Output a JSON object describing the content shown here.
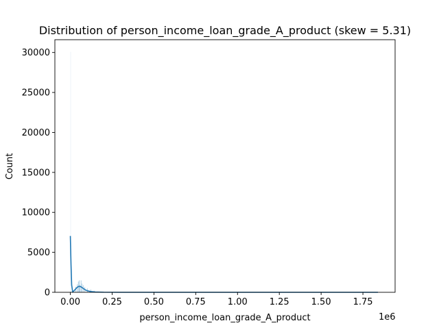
{
  "chart_data": {
    "type": "histogram",
    "title": "Distribution of person_income_loan_grade_A_product (skew = 5.31)",
    "xlabel": "person_income_loan_grade_A_product",
    "ylabel": "Count",
    "x_offset_label": "1e6",
    "xlim": [
      -0.0925,
      1.9425
    ],
    "ylim": [
      0,
      31600
    ],
    "x_ticks": [
      0.0,
      0.25,
      0.5,
      0.75,
      1.0,
      1.25,
      1.5,
      1.75
    ],
    "x_tick_labels": [
      "0.00",
      "0.25",
      "0.50",
      "0.75",
      "1.00",
      "1.25",
      "1.50",
      "1.75"
    ],
    "y_ticks": [
      0,
      5000,
      10000,
      15000,
      20000,
      25000,
      30000
    ],
    "y_tick_labels": [
      "0",
      "5000",
      "10000",
      "15000",
      "20000",
      "25000",
      "30000"
    ],
    "grid": false,
    "legend": "none",
    "colors": {
      "bars": "#1f77b4",
      "kde": "#1f77b4",
      "bar_edge": "#ffffff"
    },
    "bars": [
      {
        "x": 0.0,
        "count": 30100
      },
      {
        "x": 0.001,
        "count": 120
      },
      {
        "x": 0.03,
        "count": 700
      },
      {
        "x": 0.04,
        "count": 1000
      },
      {
        "x": 0.046,
        "count": 1350
      },
      {
        "x": 0.052,
        "count": 1500
      },
      {
        "x": 0.056,
        "count": 900
      },
      {
        "x": 0.062,
        "count": 1500
      },
      {
        "x": 0.068,
        "count": 1100
      },
      {
        "x": 0.075,
        "count": 900
      },
      {
        "x": 0.085,
        "count": 650
      },
      {
        "x": 0.1,
        "count": 500
      },
      {
        "x": 0.12,
        "count": 350
      },
      {
        "x": 0.14,
        "count": 200
      },
      {
        "x": 0.16,
        "count": 100
      }
    ],
    "kde": [
      {
        "x": 0.0,
        "y": 7050
      },
      {
        "x": 0.004,
        "y": 3500
      },
      {
        "x": 0.008,
        "y": 900
      },
      {
        "x": 0.014,
        "y": 50
      },
      {
        "x": 0.02,
        "y": 150
      },
      {
        "x": 0.03,
        "y": 380
      },
      {
        "x": 0.04,
        "y": 600
      },
      {
        "x": 0.05,
        "y": 740
      },
      {
        "x": 0.06,
        "y": 720
      },
      {
        "x": 0.07,
        "y": 600
      },
      {
        "x": 0.08,
        "y": 440
      },
      {
        "x": 0.09,
        "y": 300
      },
      {
        "x": 0.1,
        "y": 200
      },
      {
        "x": 0.12,
        "y": 100
      },
      {
        "x": 0.15,
        "y": 40
      },
      {
        "x": 0.2,
        "y": 10
      },
      {
        "x": 0.3,
        "y": 0
      },
      {
        "x": 1.0,
        "y": 0
      },
      {
        "x": 1.84,
        "y": 0
      }
    ]
  }
}
